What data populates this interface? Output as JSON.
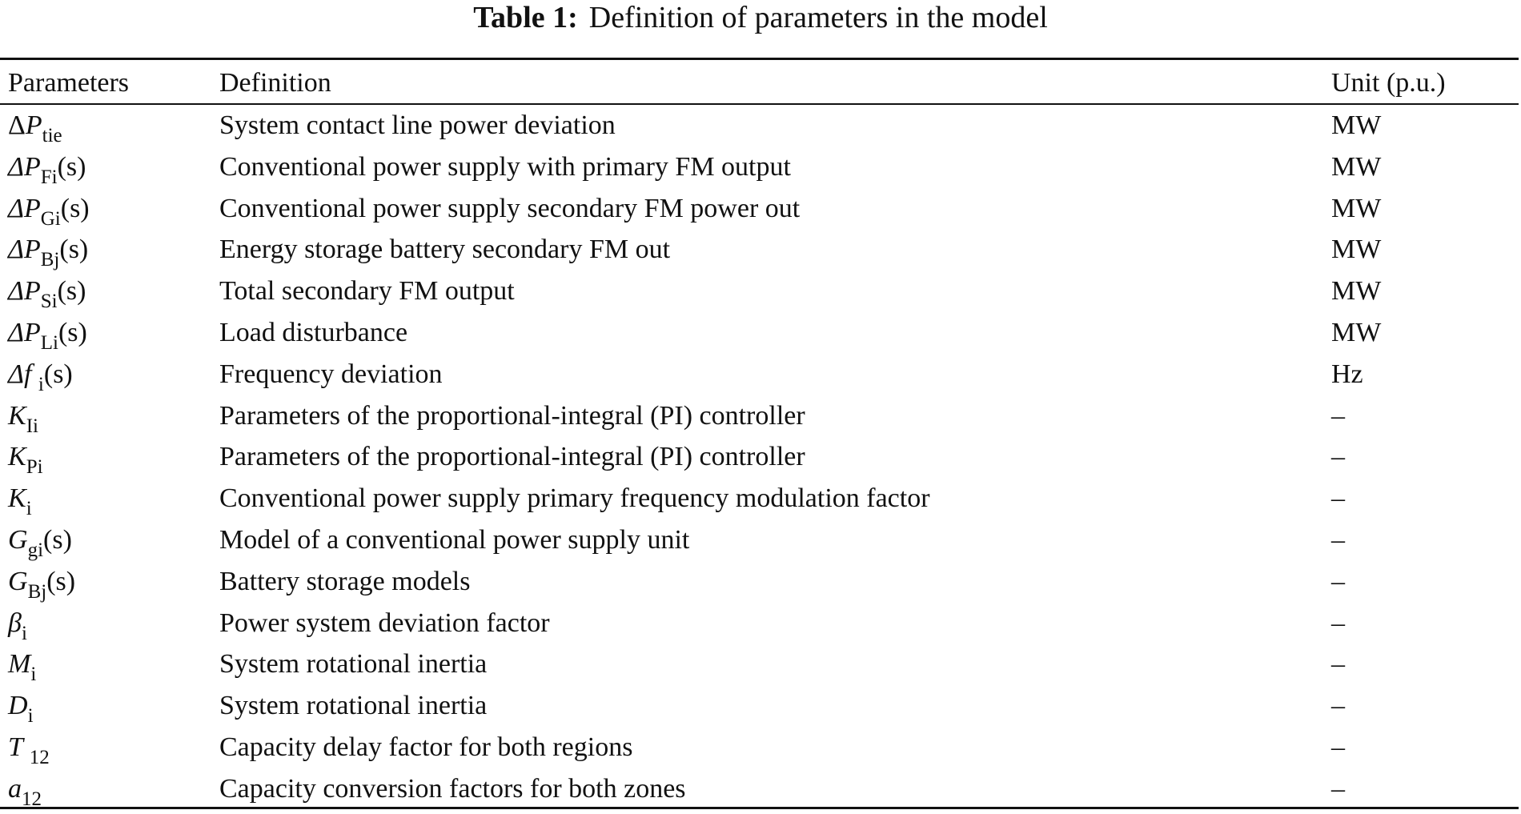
{
  "caption": {
    "label": "Table 1:",
    "text": "Definition of parameters in the model"
  },
  "table": {
    "headers": [
      "Parameters",
      "Definition",
      "Unit (p.u.)"
    ],
    "rows": [
      {
        "param": {
          "pre": "Δ",
          "sym": "P",
          "sub": "tie",
          "post": ""
        },
        "definition": "System contact line power deviation",
        "unit": "MW"
      },
      {
        "param": {
          "pre": "Δ",
          "sym": "P",
          "sub": "Fi",
          "post": "(s)"
        },
        "definition": "Conventional power supply with primary FM output",
        "unit": "MW"
      },
      {
        "param": {
          "pre": "Δ",
          "sym": "P",
          "sub": "Gi",
          "post": "(s)"
        },
        "definition": "Conventional power supply secondary FM power out",
        "unit": "MW"
      },
      {
        "param": {
          "pre": "Δ",
          "sym": "P",
          "sub": "Bj",
          "post": "(s)"
        },
        "definition": "Energy storage battery secondary FM out",
        "unit": "MW"
      },
      {
        "param": {
          "pre": "Δ",
          "sym": "P",
          "sub": "Si",
          "post": "(s)"
        },
        "definition": "Total secondary FM output",
        "unit": "MW"
      },
      {
        "param": {
          "pre": "Δ",
          "sym": "P",
          "sub": "Li",
          "post": "(s)"
        },
        "definition": "Load disturbance",
        "unit": "MW"
      },
      {
        "param": {
          "pre": "Δ",
          "sym": "f ",
          "sub": "i",
          "post": "(s)"
        },
        "definition": "Frequency deviation",
        "unit": "Hz"
      },
      {
        "param": {
          "pre": "",
          "sym": "K",
          "sub": "Ii",
          "post": ""
        },
        "definition": "Parameters of the proportional-integral (PI) controller",
        "unit": "–"
      },
      {
        "param": {
          "pre": "",
          "sym": "K",
          "sub": "Pi",
          "post": ""
        },
        "definition": "Parameters of the proportional-integral (PI) controller",
        "unit": "–"
      },
      {
        "param": {
          "pre": "",
          "sym": "K",
          "sub": "i",
          "post": ""
        },
        "definition": "Conventional power supply primary frequency modulation factor",
        "unit": "–"
      },
      {
        "param": {
          "pre": "",
          "sym": "G",
          "sub": "gi",
          "post": "(s)"
        },
        "definition": "Model of a conventional power supply unit",
        "unit": "–"
      },
      {
        "param": {
          "pre": "",
          "sym": "G",
          "sub": "Bj",
          "post": "(s)"
        },
        "definition": "Battery storage models",
        "unit": "–"
      },
      {
        "param": {
          "pre": "",
          "sym": "β",
          "sub": "i",
          "post": ""
        },
        "definition": "Power system deviation factor",
        "unit": "–"
      },
      {
        "param": {
          "pre": "",
          "sym": "M",
          "sub": "i",
          "post": ""
        },
        "definition": "System rotational inertia",
        "unit": "–"
      },
      {
        "param": {
          "pre": "",
          "sym": "D",
          "sub": "i",
          "post": ""
        },
        "definition": "System rotational inertia",
        "unit": "–"
      },
      {
        "param": {
          "pre": "",
          "sym": "T ",
          "sub": "12",
          "post": ""
        },
        "definition": "Capacity delay factor for both regions",
        "unit": "–"
      },
      {
        "param": {
          "pre": "",
          "sym": "a",
          "sub": "12",
          "post": ""
        },
        "definition": "Capacity conversion factors for both zones",
        "unit": "–"
      }
    ]
  }
}
